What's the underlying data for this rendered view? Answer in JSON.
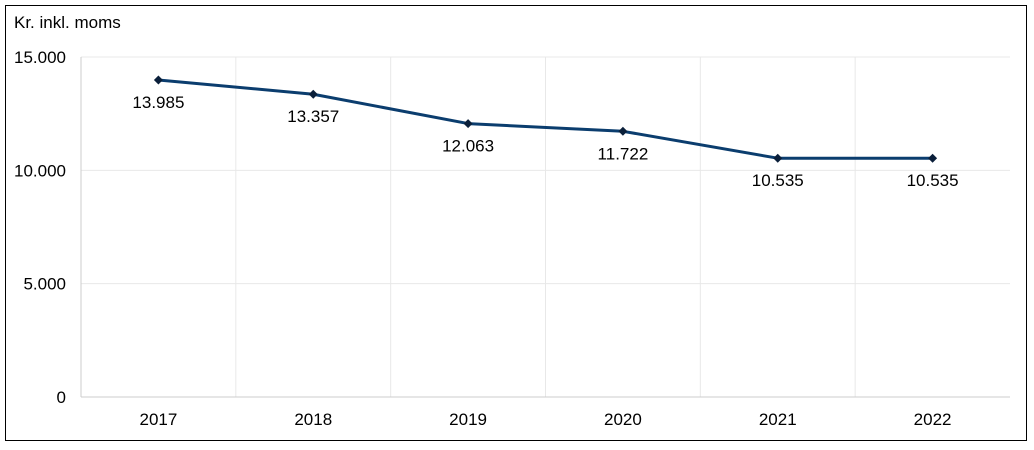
{
  "chart_data": {
    "type": "line",
    "ylabel": "Kr. inkl. moms",
    "categories": [
      "2017",
      "2018",
      "2019",
      "2020",
      "2021",
      "2022"
    ],
    "series": [
      {
        "values": [
          13985,
          13357,
          12063,
          11722,
          10535,
          10535
        ],
        "labels": [
          "13.985",
          "13.357",
          "12.063",
          "11.722",
          "10.535",
          "10.535"
        ],
        "color": "#0b3d6e"
      }
    ],
    "yticks": [
      {
        "value": 0,
        "label": "0"
      },
      {
        "value": 5000,
        "label": "5.000"
      },
      {
        "value": 10000,
        "label": "10.000"
      },
      {
        "value": 15000,
        "label": "15.000"
      }
    ],
    "ylim": [
      0,
      15000
    ],
    "grid": true,
    "gridline_color": "#e8e8e8",
    "axis_color": "#cccccc",
    "legend": "none"
  }
}
